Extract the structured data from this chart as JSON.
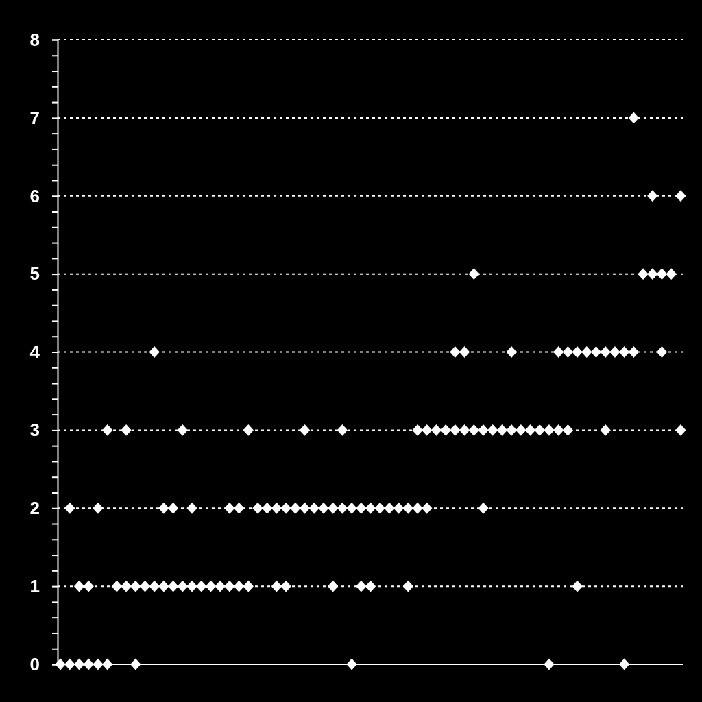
{
  "chart_data": {
    "type": "scatter",
    "marker": "diamond",
    "grid": "y",
    "tick_labels": "y",
    "ylim": [
      0,
      8
    ],
    "categories": [
      null,
      null,
      null,
      null,
      null,
      null,
      null,
      null,
      null,
      null,
      null,
      null,
      null,
      null,
      null,
      null,
      null,
      null,
      null,
      null,
      null,
      null,
      null,
      null,
      null,
      null,
      null,
      null,
      null,
      null,
      null,
      null,
      null,
      null,
      null,
      null,
      null,
      null,
      null,
      null,
      null,
      null,
      null,
      null,
      null,
      null,
      null,
      null,
      null,
      null,
      null,
      null,
      null,
      null,
      null,
      null,
      null,
      null,
      null,
      null,
      null,
      null,
      null,
      null,
      null,
      null,
      null
    ],
    "yticks": [
      0,
      {
        "value": 0.2,
        "label": null
      },
      {
        "value": 0.4,
        "label": null
      },
      {
        "value": 0.6,
        "label": null
      },
      {
        "value": 0.8,
        "label": null
      },
      1,
      {
        "value": 1.2,
        "label": null
      },
      {
        "value": 1.4,
        "label": null
      },
      {
        "value": 1.6,
        "label": null
      },
      {
        "value": 1.8,
        "label": null
      },
      2,
      {
        "value": 2.2,
        "label": null
      },
      {
        "value": 2.4,
        "label": null
      },
      {
        "value": 2.6,
        "label": null
      },
      {
        "value": 2.8,
        "label": null
      },
      3,
      {
        "value": 3.2,
        "label": null
      },
      {
        "value": 3.4,
        "label": null
      },
      {
        "value": 3.6,
        "label": null
      },
      {
        "value": 3.8,
        "label": null
      },
      4,
      {
        "value": 4.2,
        "label": null
      },
      {
        "value": 4.4,
        "label": null
      },
      {
        "value": 4.6,
        "label": null
      },
      {
        "value": 4.8,
        "label": null
      },
      5,
      {
        "value": 5.2,
        "label": null
      },
      {
        "value": 5.4,
        "label": null
      },
      {
        "value": 5.6,
        "label": null
      },
      {
        "value": 5.8,
        "label": null
      },
      6,
      {
        "value": 6.2,
        "label": null
      },
      {
        "value": 6.4,
        "label": null
      },
      {
        "value": 6.6,
        "label": null
      },
      {
        "value": 6.8,
        "label": null
      },
      7,
      {
        "value": 7.2,
        "label": null
      },
      {
        "value": 7.4,
        "label": null
      },
      {
        "value": 7.6,
        "label": null
      },
      {
        "value": 7.8,
        "label": null
      },
      8
    ],
    "series": [
      {
        "color": "#ffffff",
        "values": [
          0,
          0,
          0,
          0,
          0,
          0,
          null,
          null,
          0,
          null,
          null,
          null,
          null,
          null,
          null,
          null,
          null,
          null,
          null,
          null,
          null,
          null,
          null,
          null,
          null,
          null,
          null,
          null,
          null,
          null,
          null,
          0,
          null,
          null,
          null,
          null,
          null,
          null,
          null,
          null,
          null,
          null,
          null,
          null,
          null,
          null,
          null,
          null,
          null,
          null,
          null,
          null,
          0,
          null,
          null,
          null,
          null,
          null,
          null,
          null,
          0,
          null,
          null,
          null,
          null,
          null,
          null
        ]
      },
      {
        "color": "#ffffff",
        "values": [
          null,
          null,
          1,
          1,
          null,
          null,
          1,
          1,
          1,
          1,
          1,
          1,
          1,
          1,
          1,
          1,
          1,
          1,
          1,
          1,
          1,
          null,
          null,
          1,
          1,
          null,
          null,
          null,
          null,
          1,
          null,
          null,
          1,
          1,
          null,
          null,
          null,
          1,
          null,
          null,
          null,
          null,
          null,
          null,
          null,
          null,
          null,
          null,
          null,
          null,
          null,
          null,
          null,
          null,
          null,
          1,
          null,
          null,
          null,
          null,
          null,
          null,
          null,
          null,
          null,
          null,
          null
        ]
      },
      {
        "color": "#ffffff",
        "values": [
          null,
          2,
          null,
          null,
          2,
          null,
          null,
          null,
          null,
          null,
          null,
          2,
          2,
          null,
          2,
          null,
          null,
          null,
          2,
          2,
          null,
          2,
          2,
          2,
          2,
          2,
          2,
          2,
          2,
          2,
          2,
          2,
          2,
          2,
          2,
          2,
          2,
          2,
          2,
          2,
          null,
          null,
          null,
          null,
          null,
          2,
          null,
          null,
          null,
          null,
          null,
          null,
          null,
          null,
          null,
          null,
          null,
          null,
          null,
          null,
          null,
          null,
          null,
          null,
          null,
          null,
          null
        ]
      },
      {
        "color": "#ffffff",
        "values": [
          null,
          null,
          null,
          null,
          null,
          3,
          null,
          3,
          null,
          null,
          null,
          null,
          null,
          3,
          null,
          null,
          null,
          null,
          null,
          null,
          3,
          null,
          null,
          null,
          null,
          null,
          3,
          null,
          null,
          null,
          3,
          null,
          null,
          null,
          null,
          null,
          null,
          null,
          3,
          3,
          3,
          3,
          3,
          3,
          3,
          3,
          3,
          3,
          3,
          3,
          3,
          3,
          3,
          3,
          3,
          null,
          null,
          null,
          3,
          null,
          null,
          null,
          null,
          null,
          null,
          null,
          3
        ]
      },
      {
        "color": "#ffffff",
        "values": [
          null,
          null,
          null,
          null,
          null,
          null,
          null,
          null,
          null,
          null,
          4,
          null,
          null,
          null,
          null,
          null,
          null,
          null,
          null,
          null,
          null,
          null,
          null,
          null,
          null,
          null,
          null,
          null,
          null,
          null,
          null,
          null,
          null,
          null,
          null,
          null,
          null,
          null,
          null,
          null,
          null,
          null,
          4,
          4,
          null,
          null,
          null,
          null,
          4,
          null,
          null,
          null,
          null,
          4,
          4,
          4,
          4,
          4,
          4,
          4,
          4,
          4,
          null,
          null,
          4,
          null,
          null
        ]
      },
      {
        "color": "#ffffff",
        "values": [
          null,
          null,
          null,
          null,
          null,
          null,
          null,
          null,
          null,
          null,
          null,
          null,
          null,
          null,
          null,
          null,
          null,
          null,
          null,
          null,
          null,
          null,
          null,
          null,
          null,
          null,
          null,
          null,
          null,
          null,
          null,
          null,
          null,
          null,
          null,
          null,
          null,
          null,
          null,
          null,
          null,
          null,
          null,
          null,
          5,
          null,
          null,
          null,
          null,
          null,
          null,
          null,
          null,
          null,
          null,
          null,
          null,
          null,
          null,
          null,
          null,
          null,
          5,
          5,
          5,
          5,
          null
        ]
      },
      {
        "color": "#ffffff",
        "values": [
          null,
          null,
          null,
          null,
          null,
          null,
          null,
          null,
          null,
          null,
          null,
          null,
          null,
          null,
          null,
          null,
          null,
          null,
          null,
          null,
          null,
          null,
          null,
          null,
          null,
          null,
          null,
          null,
          null,
          null,
          null,
          null,
          null,
          null,
          null,
          null,
          null,
          null,
          null,
          null,
          null,
          null,
          null,
          null,
          null,
          null,
          null,
          null,
          null,
          null,
          null,
          null,
          null,
          null,
          null,
          null,
          null,
          null,
          null,
          null,
          null,
          null,
          null,
          6,
          null,
          null,
          6
        ]
      },
      {
        "color": "#ffffff",
        "values": [
          null,
          null,
          null,
          null,
          null,
          null,
          null,
          null,
          null,
          null,
          null,
          null,
          null,
          null,
          null,
          null,
          null,
          null,
          null,
          null,
          null,
          null,
          null,
          null,
          null,
          null,
          null,
          null,
          null,
          null,
          null,
          null,
          null,
          null,
          null,
          null,
          null,
          null,
          null,
          null,
          null,
          null,
          null,
          null,
          null,
          null,
          null,
          null,
          null,
          null,
          null,
          null,
          null,
          null,
          null,
          null,
          null,
          null,
          null,
          null,
          null,
          7,
          null,
          null,
          null,
          null,
          null
        ]
      }
    ]
  }
}
